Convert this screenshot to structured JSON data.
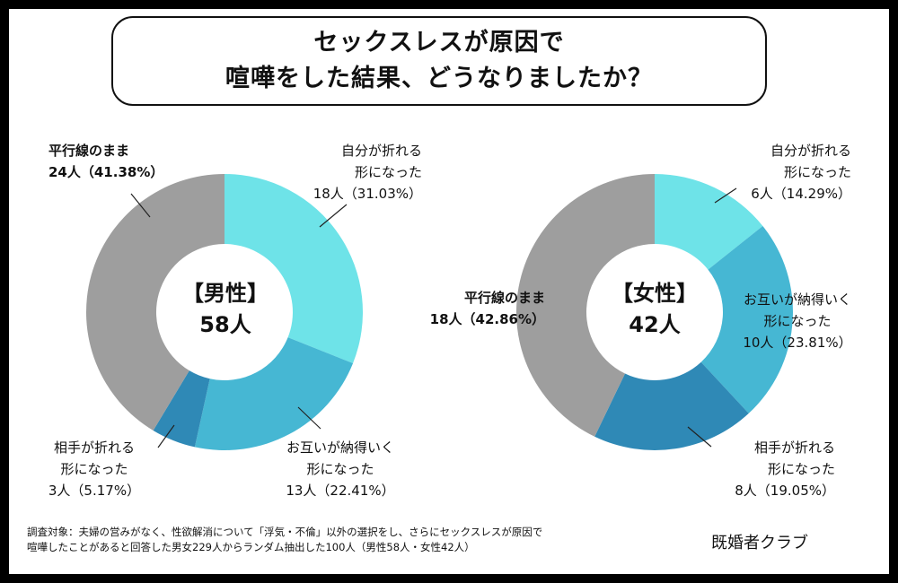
{
  "title": {
    "line1": "セックスレスが原因で",
    "line2": "喧嘩をした結果、どうなりましたか？"
  },
  "chart_data": [
    {
      "type": "pie",
      "name": "【男性】",
      "total": "58人",
      "categories": [
        "自分が折れる形になった",
        "お互いが納得いく形になった",
        "相手が折れる形になった",
        "平行線のまま"
      ],
      "values": [
        18,
        13,
        3,
        24
      ],
      "percentages": [
        31.03,
        22.41,
        5.17,
        41.38
      ],
      "colors": [
        "#6ee3e8",
        "#46b7d3",
        "#2f89b6",
        "#9e9e9e"
      ],
      "labels": [
        {
          "lines": [
            "自分が折れる",
            "形になった",
            "18人（31.03%）"
          ],
          "bold": false
        },
        {
          "lines": [
            "お互いが納得いく",
            "形になった",
            "13人（22.41%）"
          ],
          "bold": false
        },
        {
          "lines": [
            "相手が折れる",
            "形になった",
            "3人（5.17%）"
          ],
          "bold": false
        },
        {
          "lines": [
            "平行線のまま",
            "24人（41.38%）"
          ],
          "bold": true
        }
      ]
    },
    {
      "type": "pie",
      "name": "【女性】",
      "total": "42人",
      "categories": [
        "自分が折れる形になった",
        "お互いが納得いく形になった",
        "相手が折れる形になった",
        "平行線のまま"
      ],
      "values": [
        6,
        10,
        8,
        18
      ],
      "percentages": [
        14.29,
        23.81,
        19.05,
        42.86
      ],
      "colors": [
        "#6ee3e8",
        "#46b7d3",
        "#2f89b6",
        "#9e9e9e"
      ],
      "labels": [
        {
          "lines": [
            "自分が折れる",
            "形になった",
            "6人（14.29%）"
          ],
          "bold": false
        },
        {
          "lines": [
            "お互いが納得いく",
            "形になった",
            "10人（23.81%）"
          ],
          "bold": false
        },
        {
          "lines": [
            "相手が折れる",
            "形になった",
            "8人（19.05%）"
          ],
          "bold": false
        },
        {
          "lines": [
            "平行線のまま",
            "18人（42.86%）"
          ],
          "bold": true
        }
      ]
    }
  ],
  "footnote": {
    "line1": "調査対象：夫婦の営みがなく、性欲解消について「浮気・不倫」以外の選択をし、さらにセックスレスが原因で",
    "line2": "喧嘩したことがあると回答した男女229人からランダム抽出した100人（男性58人・女性42人）"
  },
  "brand": "既婚者クラブ"
}
